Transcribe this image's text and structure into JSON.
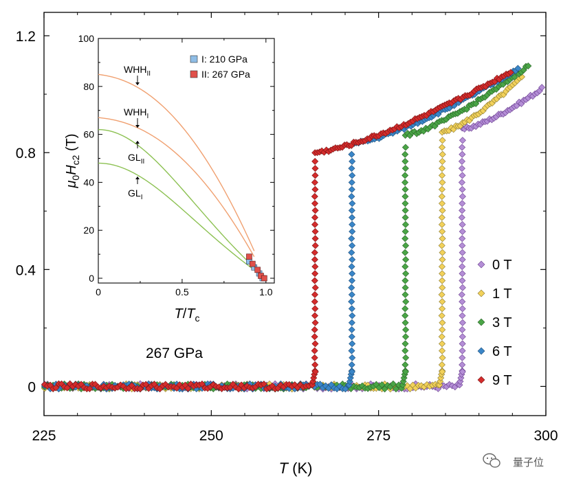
{
  "chart_data": [
    {
      "type": "scatter",
      "title": "",
      "xlabel": "T (K)",
      "xlabel_italic": "T",
      "xlabel_unit": " (K)",
      "ylabel": "",
      "xlim": [
        225,
        300
      ],
      "ylim": [
        -0.1,
        1.28
      ],
      "xticks": [
        225,
        250,
        275,
        300
      ],
      "yticks": [
        0,
        0.4,
        0.8,
        1.2
      ],
      "ytick_labels": [
        "0",
        "0.4",
        "0.8",
        "1.2"
      ],
      "annotation": "267 GPa",
      "legend_position": "right",
      "series": [
        {
          "name": "0 T",
          "color": "#b48ed6",
          "Tc": 287.5,
          "Tmax": 299.5,
          "y_at_Tc": 0.88,
          "y_at_Tmax": 1.02
        },
        {
          "name": "1 T",
          "color": "#f2d15a",
          "Tc": 284.5,
          "Tmax": 296.5,
          "y_at_Tc": 0.87,
          "y_at_Tmax": 1.06
        },
        {
          "name": "3 T",
          "color": "#4aa546",
          "Tc": 279.0,
          "Tmax": 297.5,
          "y_at_Tc": 0.86,
          "y_at_Tmax": 1.1
        },
        {
          "name": "6 T",
          "color": "#3a86c8",
          "Tc": 271.0,
          "Tmax": 296.0,
          "y_at_Tc": 0.83,
          "y_at_Tmax": 1.09
        },
        {
          "name": "9 T",
          "color": "#d42c2c",
          "Tc": 265.5,
          "Tmax": 295.0,
          "y_at_Tc": 0.8,
          "y_at_Tmax": 1.08
        }
      ],
      "inset": {
        "xlabel_italic_1": "T",
        "xlabel_slash": "/",
        "xlabel_italic_2": "T",
        "xlabel_sub": "c",
        "ylabel_mu": "μ",
        "ylabel_mu_sub": "0",
        "ylabel_H": "H",
        "ylabel_H_sub": "c2",
        "ylabel_unit": " (T)",
        "xlim": [
          0,
          1.05
        ],
        "ylim": [
          -2,
          100
        ],
        "xticks": [
          0,
          0.5,
          1.0
        ],
        "xtick_labels": [
          "0",
          "0.5",
          "1.0"
        ],
        "yticks": [
          0,
          20,
          40,
          60,
          80,
          100
        ],
        "ytick_labels": [
          "0",
          "20",
          "40",
          "60",
          "80",
          "100"
        ],
        "legend": [
          {
            "label": "I: 210 GPa",
            "color": "#8fbde6"
          },
          {
            "label": "II: 267 GPa",
            "color": "#e0504a"
          }
        ],
        "curves": [
          {
            "name": "WHH_II",
            "type": "WHH",
            "H0": 85,
            "color": "#f0a070"
          },
          {
            "name": "WHH_I",
            "type": "WHH",
            "H0": 67,
            "color": "#f0a070"
          },
          {
            "name": "GL_II",
            "type": "GL",
            "H0": 62,
            "color": "#8cc152"
          },
          {
            "name": "GL_I",
            "type": "GL",
            "H0": 48,
            "color": "#8cc152"
          }
        ],
        "labels": [
          {
            "main": "WHH",
            "sub": "II"
          },
          {
            "main": "WHH",
            "sub": "I"
          },
          {
            "main": "GL",
            "sub": "II"
          },
          {
            "main": "GL",
            "sub": "I"
          }
        ],
        "points_I": [
          [
            0.9,
            7.0
          ],
          [
            0.93,
            4.5
          ],
          [
            0.96,
            2.0
          ],
          [
            0.98,
            0.0
          ]
        ],
        "points_II": [
          [
            0.9,
            9.0
          ],
          [
            0.92,
            6.0
          ],
          [
            0.95,
            3.5
          ],
          [
            0.97,
            1.0
          ],
          [
            0.99,
            0.0
          ]
        ]
      }
    }
  ],
  "watermark": {
    "text": "量子位"
  }
}
